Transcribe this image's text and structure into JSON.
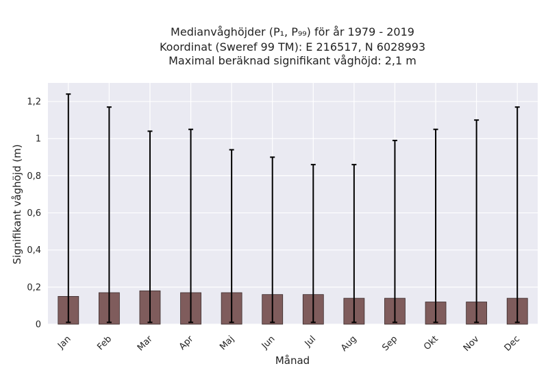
{
  "chart_data": {
    "type": "bar",
    "title_lines": [
      "Medianvåghöjder (P₁, P₉₉) för år 1979 - 2019",
      "Koordinat (Sweref 99 TM): E 216517, N 6028993",
      "Maximal beräknad signifikant våghöjd: 2,1 m"
    ],
    "xlabel": "Månad",
    "ylabel": "Signifikant våghöjd (m)",
    "categories": [
      "Jan",
      "Feb",
      "Mar",
      "Apr",
      "Maj",
      "Jun",
      "Jul",
      "Aug",
      "Sep",
      "Okt",
      "Nov",
      "Dec"
    ],
    "values": [
      0.15,
      0.17,
      0.18,
      0.17,
      0.17,
      0.16,
      0.16,
      0.14,
      0.14,
      0.12,
      0.12,
      0.14
    ],
    "err_low": [
      0.01,
      0.01,
      0.01,
      0.01,
      0.01,
      0.01,
      0.01,
      0.01,
      0.01,
      0.01,
      0.01,
      0.01
    ],
    "err_high": [
      1.24,
      1.17,
      1.04,
      1.05,
      0.94,
      0.9,
      0.86,
      0.86,
      0.99,
      1.05,
      1.1,
      1.17
    ],
    "ylim": [
      0,
      1.3
    ],
    "yticks": [
      0,
      0.2,
      0.4,
      0.6,
      0.8,
      1,
      1.2
    ],
    "ytick_labels": [
      "0",
      "0,2",
      "0,4",
      "0,6",
      "0,8",
      "1",
      "1,2"
    ],
    "grid": true,
    "colors": {
      "bar": "#7f5c5c",
      "bar_edge": "#3a2a2a",
      "error": "#000000",
      "plot_bg": "#eaeaf2",
      "grid": "#ffffff"
    }
  }
}
